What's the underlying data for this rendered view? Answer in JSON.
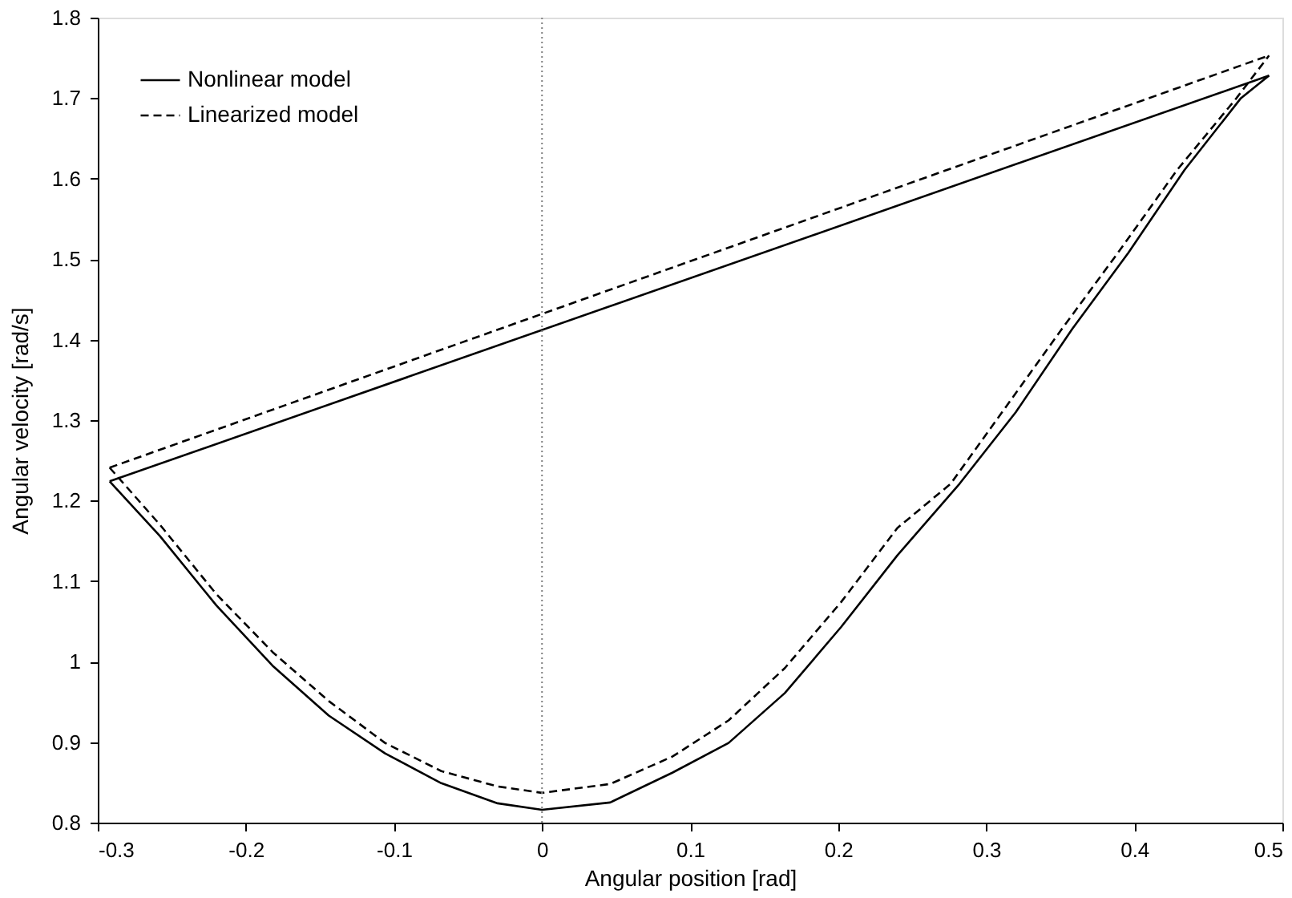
{
  "chart_data": {
    "type": "line",
    "xlabel": "Angular position [rad]",
    "ylabel": "Angular velocity [rad/s]",
    "xlim": [
      -0.3,
      0.5
    ],
    "ylim": [
      0.8,
      1.8
    ],
    "xticks": [
      -0.3,
      -0.2,
      -0.1,
      {
        "value": 0,
        "label": "0"
      },
      0.1,
      0.2,
      0.3,
      0.4,
      0.5
    ],
    "yticks": [
      0.8,
      0.9,
      {
        "value": 1,
        "label": "1"
      },
      1.1,
      1.2,
      1.3,
      1.4,
      1.5,
      1.6,
      1.7,
      1.8
    ],
    "grid": false,
    "legend": "top left",
    "marker": "none",
    "ref_lines": [
      {
        "axis": "x",
        "value": 0,
        "color": "#808080",
        "line_style": "dotted"
      }
    ],
    "series": [
      {
        "name": "Nonlinear model",
        "color": "#000000",
        "line_style": "solid",
        "x": [
          -0.292,
          -0.258,
          -0.22,
          -0.182,
          -0.144,
          -0.106,
          -0.068,
          -0.03,
          0,
          0.046,
          0.088,
          0.126,
          0.164,
          0.202,
          0.24,
          0.282,
          0.32,
          0.358,
          0.396,
          0.434,
          0.472,
          0.491
        ],
        "values": [
          1.224,
          1.156,
          1.07,
          0.995,
          0.933,
          0.886,
          0.849,
          0.824,
          0.816,
          0.825,
          0.862,
          0.899,
          0.961,
          1.043,
          1.132,
          1.221,
          1.31,
          1.413,
          1.508,
          1.611,
          1.7,
          1.728
        ]
      },
      {
        "name": "Linearized model",
        "color": "#000000",
        "line_style": "dashed",
        "x": [
          -0.292,
          -0.258,
          -0.22,
          -0.182,
          -0.144,
          -0.106,
          -0.068,
          -0.03,
          0,
          0.046,
          0.088,
          0.126,
          0.164,
          0.202,
          0.24,
          0.276,
          0.351,
          0.389,
          0.429,
          0.469,
          0.491
        ],
        "values": [
          1.241,
          1.17,
          1.084,
          1.012,
          0.951,
          0.899,
          0.864,
          0.845,
          0.837,
          0.848,
          0.882,
          0.927,
          0.992,
          1.074,
          1.166,
          1.221,
          1.413,
          1.508,
          1.611,
          1.7,
          1.753
        ]
      },
      {
        "color": "#000000",
        "line_style": "solid",
        "x": [
          -0.292,
          0.491
        ],
        "values": [
          1.224,
          1.728
        ]
      },
      {
        "color": "#000000",
        "line_style": "dashed",
        "x": [
          -0.292,
          0.491
        ],
        "values": [
          1.241,
          1.753
        ]
      }
    ]
  }
}
